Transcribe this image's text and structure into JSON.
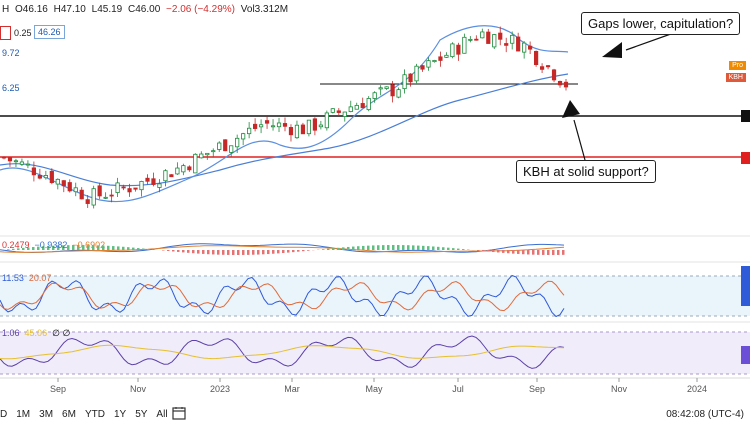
{
  "header": {
    "symbol_partial": "H",
    "open": "O46.16",
    "high": "H47.10",
    "low": "L45.19",
    "close": "C46.00",
    "change": "−2.06 (−4.29%)",
    "volume": "Vol3.312M"
  },
  "price_badges": {
    "left_a": "0.25",
    "left_b": "46.26",
    "left_c": "9.72",
    "left_d": "6.25",
    "pro": "Pro",
    "kbh": "KBH"
  },
  "indicators": {
    "macd": [
      "0.2479",
      "−0.9382",
      "−0.6902"
    ],
    "stoch": [
      "11.53",
      "20.07"
    ],
    "rsi": [
      "1.06",
      "45.06",
      "∅",
      "∅"
    ]
  },
  "annotations": {
    "top": "Gaps lower, capitulation?",
    "mid": "KBH at solid support?"
  },
  "toolbar": {
    "ranges": [
      "D",
      "1M",
      "3M",
      "6M",
      "YTD",
      "1Y",
      "5Y",
      "All"
    ],
    "clock": "08:42:08 (UTC-4)"
  },
  "chart_data": {
    "type": "candlestick",
    "x_labels": [
      "Sep",
      "Nov",
      "2023",
      "Mar",
      "May",
      "Jul",
      "Sep",
      "Nov",
      "2024"
    ],
    "close_path": [
      {
        "t": "2022-08",
        "v": 36
      },
      {
        "t": "2022-09",
        "v": 33
      },
      {
        "t": "2022-10",
        "v": 29
      },
      {
        "t": "2022-11",
        "v": 31
      },
      {
        "t": "2022-12",
        "v": 34
      },
      {
        "t": "2023-01",
        "v": 38
      },
      {
        "t": "2023-02",
        "v": 42
      },
      {
        "t": "2023-03",
        "v": 41
      },
      {
        "t": "2023-04",
        "v": 45
      },
      {
        "t": "2023-05",
        "v": 48
      },
      {
        "t": "2023-06",
        "v": 53
      },
      {
        "t": "2023-07",
        "v": 58
      },
      {
        "t": "2023-08",
        "v": 56
      },
      {
        "t": "2023-09",
        "v": 49
      }
    ],
    "horizontal_lines": [
      {
        "color": "#111111",
        "level": 47.5
      },
      {
        "color": "#111111",
        "level": 42.5
      },
      {
        "color": "#e02020",
        "level": 35.5
      }
    ]
  }
}
